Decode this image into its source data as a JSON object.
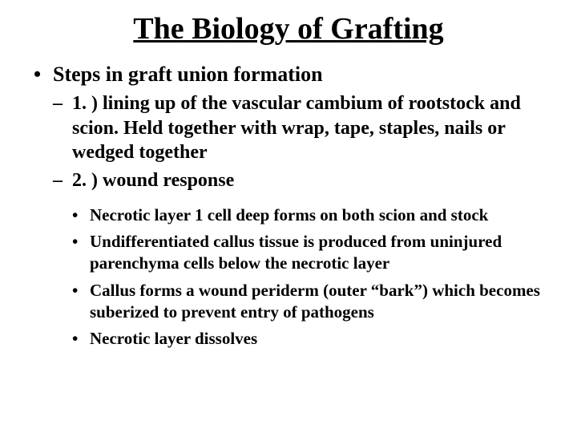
{
  "slide": {
    "title": "The Biology of Grafting",
    "title_fontsize": 38,
    "lvl1": {
      "fontsize": 26,
      "items": [
        {
          "text": "Steps in graft union formation",
          "lvl2": {
            "fontsize": 24,
            "items": [
              {
                "text": "1. ) lining up of the vascular cambium of rootstock and scion.  Held together with wrap, tape, staples, nails or wedged together"
              },
              {
                "text": "2. ) wound response",
                "lvl3": {
                  "fontsize": 21,
                  "items": [
                    {
                      "text": "Necrotic layer 1 cell deep forms on both scion and stock"
                    },
                    {
                      "text": "Undifferentiated callus tissue is produced from uninjured parenchyma cells below the necrotic layer"
                    },
                    {
                      "text": "Callus forms a wound periderm (outer “bark”) which becomes suberized to prevent entry of pathogens"
                    },
                    {
                      "text": "Necrotic layer dissolves"
                    }
                  ]
                }
              }
            ]
          }
        }
      ]
    },
    "colors": {
      "background": "#ffffff",
      "text": "#000000"
    }
  }
}
